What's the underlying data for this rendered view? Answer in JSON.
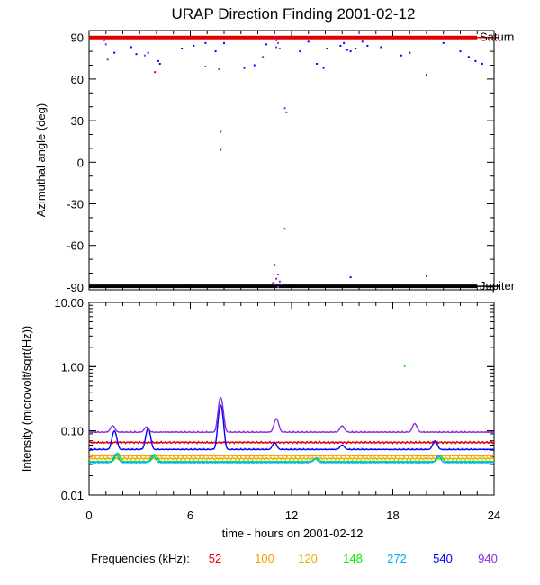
{
  "title": "URAP Direction Finding  2001-02-12",
  "chart_data": [
    {
      "type": "scatter",
      "name": "azimuth",
      "ylabel": "Azimuthal angle (deg)",
      "xlim": [
        0,
        24
      ],
      "ylim": [
        -92,
        95
      ],
      "y_ticks": [
        90,
        60,
        30,
        0,
        -30,
        -60,
        -90
      ],
      "y_tick_labels": [
        "90",
        "60",
        "30",
        "0",
        "-30",
        "-60",
        "-90"
      ],
      "reference_lines": [
        {
          "label": "Saturn",
          "y": 90,
          "x_start": 0,
          "x_end": 23,
          "color": "#e00000"
        },
        {
          "label": "Jupiter",
          "y": -89.5,
          "x_start": 0,
          "x_end": 23,
          "color": "#000000"
        }
      ],
      "points": [
        {
          "x": 0.9,
          "y": 88,
          "c": "#8a2be2"
        },
        {
          "x": 1.0,
          "y": 85,
          "c": "#8a2be2"
        },
        {
          "x": 1.1,
          "y": 74,
          "c": "#8a2be2"
        },
        {
          "x": 1.5,
          "y": 79,
          "c": "#0000ff"
        },
        {
          "x": 2.5,
          "y": 83,
          "c": "#0000ff"
        },
        {
          "x": 2.8,
          "y": 78,
          "c": "#0000ff"
        },
        {
          "x": 3.3,
          "y": 77,
          "c": "#8a2be2"
        },
        {
          "x": 3.5,
          "y": 79,
          "c": "#0000ff"
        },
        {
          "x": 3.9,
          "y": 65,
          "c": "#e00000"
        },
        {
          "x": 4.1,
          "y": 73,
          "c": "#0000ff"
        },
        {
          "x": 4.2,
          "y": 71,
          "c": "#0000ff"
        },
        {
          "x": 5.5,
          "y": 82,
          "c": "#0000ff"
        },
        {
          "x": 6.2,
          "y": 84,
          "c": "#0000ff"
        },
        {
          "x": 6.9,
          "y": 86,
          "c": "#0000ff"
        },
        {
          "x": 6.9,
          "y": 69,
          "c": "#8a2be2"
        },
        {
          "x": 7.5,
          "y": 80,
          "c": "#0000ff"
        },
        {
          "x": 7.7,
          "y": 67,
          "c": "#8a2be2"
        },
        {
          "x": 7.8,
          "y": 22,
          "c": "#8a2be2"
        },
        {
          "x": 7.8,
          "y": 9,
          "c": "#8a2be2"
        },
        {
          "x": 8.0,
          "y": 86,
          "c": "#0000ff"
        },
        {
          "x": 9.2,
          "y": 68,
          "c": "#0000ff"
        },
        {
          "x": 9.8,
          "y": 70,
          "c": "#0000ff"
        },
        {
          "x": 10.3,
          "y": 76,
          "c": "#8a2be2"
        },
        {
          "x": 10.5,
          "y": 85,
          "c": "#0000ff"
        },
        {
          "x": 11.0,
          "y": 90,
          "c": "#8a2be2"
        },
        {
          "x": 11.1,
          "y": 88,
          "c": "#8a2be2"
        },
        {
          "x": 11.2,
          "y": 86,
          "c": "#8a2be2"
        },
        {
          "x": 11.1,
          "y": 83,
          "c": "#8a2be2"
        },
        {
          "x": 11.3,
          "y": 82,
          "c": "#8a2be2"
        },
        {
          "x": 11.6,
          "y": 39,
          "c": "#8a2be2"
        },
        {
          "x": 11.7,
          "y": 36,
          "c": "#8a2be2"
        },
        {
          "x": 11.6,
          "y": -48,
          "c": "#8a2be2"
        },
        {
          "x": 11.0,
          "y": -74,
          "c": "#8a2be2"
        },
        {
          "x": 11.2,
          "y": -81,
          "c": "#8a2be2"
        },
        {
          "x": 11.1,
          "y": -84,
          "c": "#8a2be2"
        },
        {
          "x": 10.9,
          "y": -87,
          "c": "#8a2be2"
        },
        {
          "x": 11.3,
          "y": -86,
          "c": "#8a2be2"
        },
        {
          "x": 11.2,
          "y": -90,
          "c": "#8a2be2"
        },
        {
          "x": 11.4,
          "y": -88,
          "c": "#8a2be2"
        },
        {
          "x": 12.5,
          "y": 80,
          "c": "#0000ff"
        },
        {
          "x": 13.0,
          "y": 87,
          "c": "#0000ff"
        },
        {
          "x": 13.5,
          "y": 71,
          "c": "#0000ff"
        },
        {
          "x": 13.9,
          "y": 68,
          "c": "#0000ff"
        },
        {
          "x": 14.1,
          "y": 82,
          "c": "#0000ff"
        },
        {
          "x": 14.9,
          "y": 84,
          "c": "#0000ff"
        },
        {
          "x": 15.1,
          "y": 86,
          "c": "#0000ff"
        },
        {
          "x": 15.3,
          "y": 81,
          "c": "#0000ff"
        },
        {
          "x": 15.5,
          "y": 80,
          "c": "#0000ff"
        },
        {
          "x": 15.8,
          "y": 82,
          "c": "#0000ff"
        },
        {
          "x": 16.2,
          "y": 87,
          "c": "#0000ff"
        },
        {
          "x": 16.5,
          "y": 84,
          "c": "#0000ff"
        },
        {
          "x": 15.5,
          "y": -83,
          "c": "#0000ff"
        },
        {
          "x": 17.3,
          "y": 83,
          "c": "#0000ff"
        },
        {
          "x": 18.5,
          "y": 77,
          "c": "#0000ff"
        },
        {
          "x": 19.0,
          "y": 79,
          "c": "#0000ff"
        },
        {
          "x": 20.0,
          "y": 63,
          "c": "#0000ff"
        },
        {
          "x": 20.0,
          "y": -82,
          "c": "#0000ff"
        },
        {
          "x": 21.0,
          "y": 86,
          "c": "#0000ff"
        },
        {
          "x": 22.0,
          "y": 80,
          "c": "#0000ff"
        },
        {
          "x": 22.5,
          "y": 76,
          "c": "#0000ff"
        },
        {
          "x": 22.9,
          "y": 73,
          "c": "#0000ff"
        },
        {
          "x": 23.3,
          "y": 71,
          "c": "#0000ff"
        }
      ]
    },
    {
      "type": "line",
      "name": "intensity",
      "xlabel": "time - hours on 2001-02-12",
      "ylabel": "Intensity (microvolt/sqrt(Hz))",
      "yscale": "log",
      "ylim": [
        0.01,
        10
      ],
      "y_ticks": [
        10,
        1,
        0.1,
        0.01
      ],
      "y_tick_labels": [
        "10.00",
        "1.00",
        "0.10",
        "0.01"
      ],
      "xlim": [
        0,
        24
      ],
      "x_ticks": [
        0,
        6,
        12,
        18,
        24
      ],
      "x_tick_labels": [
        "0",
        "6",
        "12",
        "18",
        "24"
      ],
      "legend_label": "Frequencies (kHz):",
      "series": [
        {
          "name": "52",
          "color": "#e00000",
          "base": 0.066,
          "spikes": []
        },
        {
          "name": "100",
          "color": "#ff9900",
          "base": 0.041,
          "spikes": []
        },
        {
          "name": "120",
          "color": "#e0b000",
          "base": 0.037,
          "spikes": []
        },
        {
          "name": "148",
          "color": "#00ee00",
          "base": 0.033,
          "spikes": [
            {
              "x": 1.7,
              "v": 0.045
            },
            {
              "x": 3.9,
              "v": 0.043
            },
            {
              "x": 13.5,
              "v": 0.038
            },
            {
              "x": 20.8,
              "v": 0.042
            }
          ]
        },
        {
          "name": "272",
          "color": "#00aaff",
          "base": 0.032,
          "spikes": [
            {
              "x": 1.6,
              "v": 0.044
            },
            {
              "x": 3.8,
              "v": 0.042
            },
            {
              "x": 13.4,
              "v": 0.037
            },
            {
              "x": 20.7,
              "v": 0.041
            }
          ]
        },
        {
          "name": "540",
          "color": "#0000ff",
          "base": 0.051,
          "spikes": [
            {
              "x": 1.5,
              "v": 0.1
            },
            {
              "x": 3.5,
              "v": 0.11
            },
            {
              "x": 7.8,
              "v": 0.25
            },
            {
              "x": 11.0,
              "v": 0.065
            },
            {
              "x": 15.0,
              "v": 0.06
            },
            {
              "x": 20.5,
              "v": 0.07
            }
          ]
        },
        {
          "name": "940",
          "color": "#8a2be2",
          "base": 0.095,
          "spikes": [
            {
              "x": 1.4,
              "v": 0.12
            },
            {
              "x": 3.4,
              "v": 0.115
            },
            {
              "x": 7.8,
              "v": 0.33
            },
            {
              "x": 11.1,
              "v": 0.155
            },
            {
              "x": 15.0,
              "v": 0.12
            },
            {
              "x": 19.3,
              "v": 0.13
            }
          ]
        }
      ],
      "extra_points": [
        {
          "x": 18.7,
          "v": 1.02,
          "c": "#00ee00"
        }
      ]
    }
  ]
}
